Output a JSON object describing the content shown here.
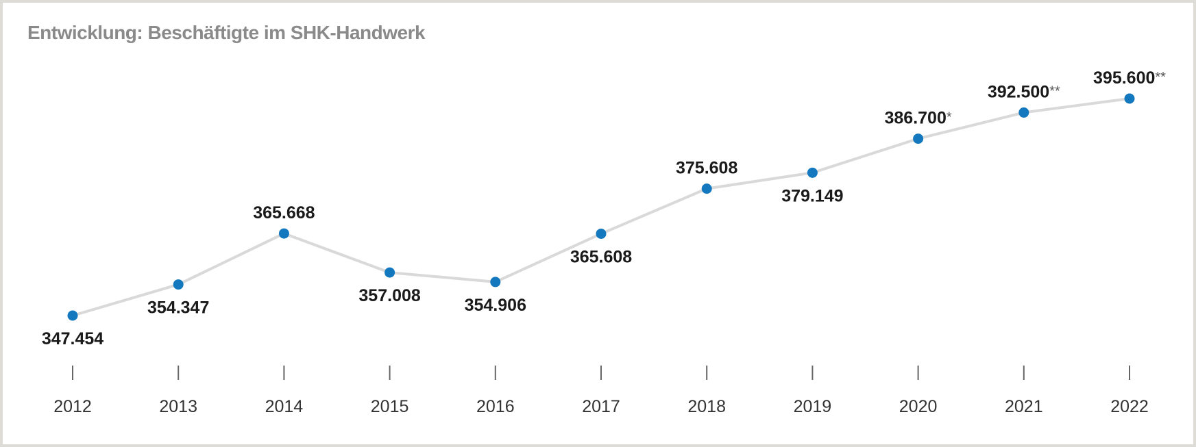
{
  "chart_data": {
    "type": "line",
    "title": "Entwicklung: Beschäftigte im SHK-Handwerk",
    "xlabel": "",
    "ylabel": "",
    "categories": [
      "2012",
      "2013",
      "2014",
      "2015",
      "2016",
      "2017",
      "2018",
      "2019",
      "2020",
      "2021",
      "2022"
    ],
    "series": [
      {
        "values": [
          347454,
          354347,
          365668,
          357008,
          354906,
          365608,
          375608,
          379149,
          386700,
          392500,
          395600
        ],
        "labels": [
          "347.454",
          "354.347",
          "365.668",
          "357.008",
          "354.906",
          "365.608",
          "375.608",
          "379.149",
          "386.700",
          "392.500",
          "395.600"
        ],
        "footnotes": [
          "",
          "",
          "",
          "",
          "",
          "",
          "",
          "",
          "*",
          "**",
          "**"
        ]
      }
    ],
    "grid": false,
    "legend": "none",
    "colors": {
      "line": "#d9d9d9",
      "marker": "#1478bf",
      "frame": "#dedcd6",
      "title": "#8a8a8a"
    }
  }
}
